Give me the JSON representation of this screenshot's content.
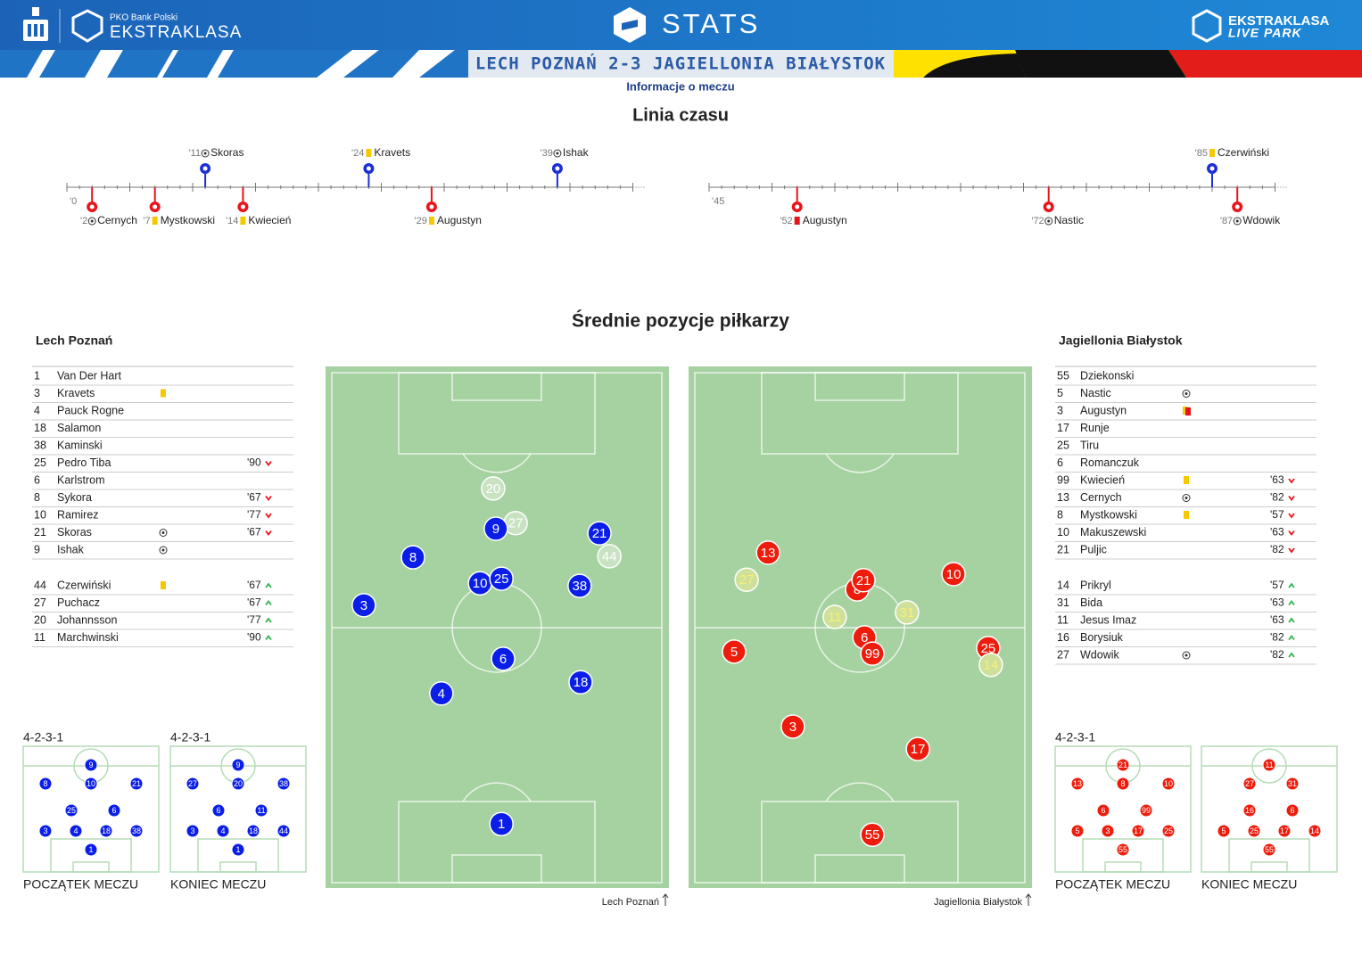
{
  "header": {
    "sponsor": "PKO Bank Polski",
    "league": "EKSTRAKLASA",
    "stats": "STATS",
    "live_brand": "EKSTRAKLASA",
    "live_sub": "LIVE PARK",
    "match": "LECH POZNAŃ 2-3 JAGIELLONIA BIAŁYSTOK",
    "info": "Informacje o meczu"
  },
  "timeline": {
    "title": "Linia czasu",
    "team_colors": [
      "#1b2fd6",
      "#e8141a"
    ],
    "halves": [
      {
        "start": {
          "value": 0,
          "label": "'0"
        },
        "xlim": [
          0,
          45
        ],
        "events": [
          {
            "minute": {
              "value": 2,
              "label": "'2"
            },
            "player": "Cernych",
            "event": "goal",
            "team": 1
          },
          {
            "minute": {
              "value": 7,
              "label": "'7"
            },
            "player": "Mystkowski",
            "event": "yellow",
            "team": 1
          },
          {
            "minute": {
              "value": 11,
              "label": "'11"
            },
            "player": "Skoras",
            "event": "goal",
            "team": 0
          },
          {
            "minute": {
              "value": 14,
              "label": "'14"
            },
            "player": "Kwiecień",
            "event": "yellow",
            "team": 1
          },
          {
            "minute": {
              "value": 24,
              "label": "'24"
            },
            "player": "Kravets",
            "event": "yellow",
            "team": 0
          },
          {
            "minute": {
              "value": 29,
              "label": "'29"
            },
            "player": "Augustyn",
            "event": "yellow",
            "team": 1
          },
          {
            "minute": {
              "value": 39,
              "label": "'39"
            },
            "player": "Ishak",
            "event": "goal",
            "team": 0
          }
        ]
      },
      {
        "start": {
          "value": 45,
          "label": "'45"
        },
        "xlim": [
          45,
          90
        ],
        "events": [
          {
            "minute": {
              "value": 52,
              "label": "'52"
            },
            "player": "Augustyn",
            "event": "red",
            "team": 1
          },
          {
            "minute": {
              "value": 72,
              "label": "'72"
            },
            "player": "Nastic",
            "event": "goal",
            "team": 1
          },
          {
            "minute": {
              "value": 85,
              "label": "'85"
            },
            "player": "Czerwiński",
            "event": "yellow",
            "team": 0
          },
          {
            "minute": {
              "value": 87,
              "label": "'87"
            },
            "player": "Wdowik",
            "event": "goal",
            "team": 1
          }
        ]
      }
    ]
  },
  "positions": {
    "title": "Średnie pozycje piłkarzy",
    "teams": [
      {
        "name": "Lech Poznań",
        "color": "#0a1ee8",
        "sub_color": "#c9e2c2",
        "sub_text": "#ffffff",
        "pitch_caption": "Lech Poznań",
        "players": [
          {
            "number": 1,
            "name": "Van Der Hart"
          },
          {
            "number": 3,
            "name": "Kravets",
            "card": "yellow"
          },
          {
            "number": 4,
            "name": "Pauck Rogne"
          },
          {
            "number": 18,
            "name": "Salamon"
          },
          {
            "number": 38,
            "name": "Kaminski"
          },
          {
            "number": 25,
            "name": "Pedro Tiba",
            "sub": {
              "minute": "'90",
              "dir": "out"
            }
          },
          {
            "number": 6,
            "name": "Karlstrom"
          },
          {
            "number": 8,
            "name": "Sykora",
            "sub": {
              "minute": "'67",
              "dir": "out"
            }
          },
          {
            "number": 10,
            "name": "Ramirez",
            "sub": {
              "minute": "'77",
              "dir": "out"
            }
          },
          {
            "number": 21,
            "name": "Skoras",
            "goal": true,
            "sub": {
              "minute": "'67",
              "dir": "out"
            }
          },
          {
            "number": 9,
            "name": "Ishak",
            "goal": true
          }
        ],
        "subs": [
          {
            "number": 44,
            "name": "Czerwiński",
            "card": "yellow",
            "sub": {
              "minute": "'67",
              "dir": "in"
            }
          },
          {
            "number": 27,
            "name": "Puchacz",
            "sub": {
              "minute": "'67",
              "dir": "in"
            }
          },
          {
            "number": 20,
            "name": "Johannsson",
            "sub": {
              "minute": "'77",
              "dir": "in"
            }
          },
          {
            "number": 11,
            "name": "Marchwinski",
            "sub": {
              "minute": "'90",
              "dir": "in"
            }
          }
        ],
        "avg": [
          {
            "number": 20,
            "x": 48.9,
            "y": 22.7,
            "sub": true
          },
          {
            "number": 27,
            "x": 55.7,
            "y": 29.5,
            "sub": true
          },
          {
            "number": 9,
            "x": 49.7,
            "y": 30.6
          },
          {
            "number": 21,
            "x": 81.1,
            "y": 31.5
          },
          {
            "number": 44,
            "x": 84.1,
            "y": 36.0,
            "sub": true
          },
          {
            "number": 8,
            "x": 24.6,
            "y": 36.2
          },
          {
            "number": 10,
            "x": 44.9,
            "y": 41.3
          },
          {
            "number": 25,
            "x": 51.4,
            "y": 40.4
          },
          {
            "number": 38,
            "x": 75.1,
            "y": 41.8
          },
          {
            "number": 3,
            "x": 9.7,
            "y": 45.6
          },
          {
            "number": 6,
            "x": 51.9,
            "y": 56.1
          },
          {
            "number": 4,
            "x": 33.2,
            "y": 62.9
          },
          {
            "number": 18,
            "x": 75.4,
            "y": 60.7
          },
          {
            "number": 1,
            "x": 51.4,
            "y": 88.5
          }
        ],
        "formations": [
          {
            "label": "4-2-3-1",
            "caption": "POCZĄTEK MECZU",
            "rows": [
              [
                9
              ],
              [
                8,
                10,
                21
              ],
              [
                25,
                6
              ],
              [
                3,
                4,
                18,
                38
              ],
              [
                1
              ]
            ]
          },
          {
            "label": "4-2-3-1",
            "caption": "KONIEC MECZU",
            "rows": [
              [
                9
              ],
              [
                27,
                20,
                38
              ],
              [
                6,
                11
              ],
              [
                3,
                4,
                18,
                44
              ],
              [
                1
              ]
            ]
          }
        ]
      },
      {
        "name": "Jagiellonia Białystok",
        "color": "#ee1c0c",
        "sub_color": "#cfe09a",
        "sub_text": "#f6f07a",
        "pitch_caption": "Jagiellonia Białystok",
        "players": [
          {
            "number": 55,
            "name": "Dziekonski"
          },
          {
            "number": 5,
            "name": "Nastic",
            "goal": true
          },
          {
            "number": 3,
            "name": "Augustyn",
            "card": "second-yellow"
          },
          {
            "number": 17,
            "name": "Runje"
          },
          {
            "number": 25,
            "name": "Tiru"
          },
          {
            "number": 6,
            "name": "Romanczuk"
          },
          {
            "number": 99,
            "name": "Kwiecień",
            "card": "yellow",
            "sub": {
              "minute": "'63",
              "dir": "out"
            }
          },
          {
            "number": 13,
            "name": "Cernych",
            "goal": true,
            "sub": {
              "minute": "'82",
              "dir": "out"
            }
          },
          {
            "number": 8,
            "name": "Mystkowski",
            "card": "yellow",
            "sub": {
              "minute": "'57",
              "dir": "out"
            }
          },
          {
            "number": 10,
            "name": "Makuszewski",
            "sub": {
              "minute": "'63",
              "dir": "out"
            }
          },
          {
            "number": 21,
            "name": "Puljic",
            "sub": {
              "minute": "'82",
              "dir": "out"
            }
          }
        ],
        "subs": [
          {
            "number": 14,
            "name": "Prikryl",
            "sub": {
              "minute": "'57",
              "dir": "in"
            }
          },
          {
            "number": 31,
            "name": "Bida",
            "sub": {
              "minute": "'63",
              "dir": "in"
            }
          },
          {
            "number": 11,
            "name": "Jesus Imaz",
            "sub": {
              "minute": "'63",
              "dir": "in"
            }
          },
          {
            "number": 16,
            "name": "Borysiuk",
            "sub": {
              "minute": "'82",
              "dir": "in"
            }
          },
          {
            "number": 27,
            "name": "Wdowik",
            "goal": true,
            "sub": {
              "minute": "'82",
              "dir": "in"
            }
          }
        ],
        "avg": [
          {
            "number": 13,
            "x": 22.2,
            "y": 35.3
          },
          {
            "number": 27,
            "x": 15.7,
            "y": 40.6,
            "sub": true
          },
          {
            "number": 8,
            "x": 49.2,
            "y": 42.5
          },
          {
            "number": 21,
            "x": 51.1,
            "y": 40.7
          },
          {
            "number": 10,
            "x": 78.4,
            "y": 39.5
          },
          {
            "number": 11,
            "x": 42.4,
            "y": 47.9,
            "sub": true
          },
          {
            "number": 31,
            "x": 64.3,
            "y": 47.0,
            "sub": true
          },
          {
            "number": 5,
            "x": 11.9,
            "y": 54.7
          },
          {
            "number": 6,
            "x": 51.4,
            "y": 51.9
          },
          {
            "number": 99,
            "x": 53.8,
            "y": 55.1
          },
          {
            "number": 25,
            "x": 88.9,
            "y": 54.0
          },
          {
            "number": 14,
            "x": 89.7,
            "y": 57.3,
            "sub": true
          },
          {
            "number": 3,
            "x": 29.7,
            "y": 69.4
          },
          {
            "number": 17,
            "x": 67.6,
            "y": 73.8
          },
          {
            "number": 55,
            "x": 53.8,
            "y": 90.6
          }
        ],
        "formations": [
          {
            "label": "4-2-3-1",
            "caption": "POCZĄTEK MECZU",
            "rows": [
              [
                21
              ],
              [
                13,
                8,
                10
              ],
              [
                6,
                99
              ],
              [
                5,
                3,
                17,
                25
              ],
              [
                55
              ]
            ]
          },
          {
            "caption": "KONIEC MECZU",
            "rows": [
              [
                11
              ],
              [
                27,
                31
              ],
              [
                16,
                6
              ],
              [
                5,
                25,
                17,
                14
              ],
              [
                55
              ]
            ]
          }
        ]
      }
    ]
  }
}
